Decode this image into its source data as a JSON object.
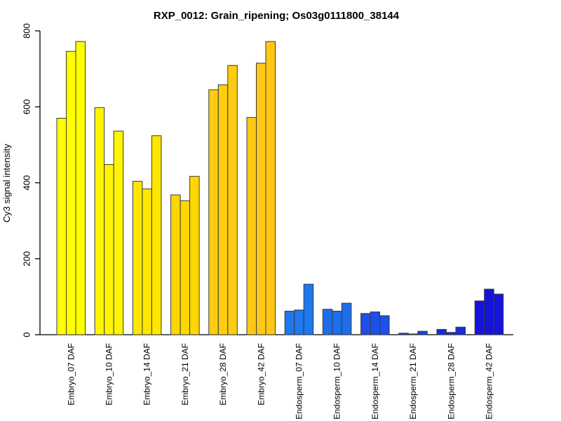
{
  "page": {
    "background_color": "#FFFFFF"
  },
  "chart_data": {
    "type": "bar",
    "title": "RXP_0012: Grain_ripening; Os03g0111800_38144",
    "xlabel": "",
    "ylabel": "Cy3 signal intensity",
    "ylim": [
      0,
      800
    ],
    "yticks": [
      0,
      200,
      400,
      600,
      800
    ],
    "grid": false,
    "legend_position": "none",
    "bars_per_group": 3,
    "bar_border_color": "#3A3A3A",
    "axis_color": "#000000",
    "groups": [
      {
        "label": "Embryo_07 DAF",
        "color": "#FFFF00",
        "values": [
          570,
          746,
          772
        ]
      },
      {
        "label": "Embryo_10 DAF",
        "color": "#FFF500",
        "values": [
          598,
          448,
          536
        ]
      },
      {
        "label": "Embryo_14 DAF",
        "color": "#FFE600",
        "values": [
          404,
          384,
          524
        ]
      },
      {
        "label": "Embryo_21 DAF",
        "color": "#FFD700",
        "values": [
          368,
          353,
          417
        ]
      },
      {
        "label": "Embryo_28 DAF",
        "color": "#FFCD0F",
        "values": [
          645,
          658,
          709
        ]
      },
      {
        "label": "Embryo_42 DAF",
        "color": "#FFC814",
        "values": [
          572,
          715,
          772
        ]
      },
      {
        "label": "Endosperm_07 DAF",
        "color": "#1E78F0",
        "values": [
          62,
          65,
          133
        ]
      },
      {
        "label": "Endosperm_10 DAF",
        "color": "#1E6EEC",
        "values": [
          67,
          62,
          83
        ]
      },
      {
        "label": "Endosperm_14 DAF",
        "color": "#1E50E8",
        "values": [
          56,
          60,
          50
        ]
      },
      {
        "label": "Endosperm_21 DAF",
        "color": "#1840E3",
        "values": [
          4,
          2,
          9
        ]
      },
      {
        "label": "Endosperm_28 DAF",
        "color": "#162CDF",
        "values": [
          14,
          6,
          20
        ]
      },
      {
        "label": "Endosperm_42 DAF",
        "color": "#1414DC",
        "values": [
          89,
          120,
          107
        ]
      }
    ]
  }
}
